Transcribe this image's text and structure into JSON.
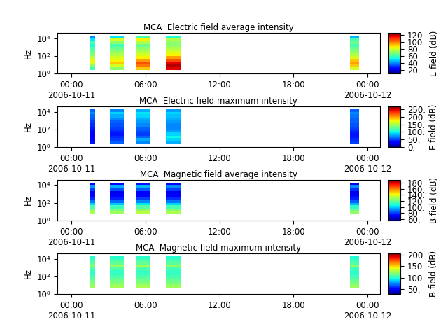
{
  "chart_data": [
    {
      "type": "heatmap",
      "title": "MCA  Electric field average intensity",
      "y_label": "Hz",
      "log": "y",
      "xlim": [
        "2006-10-10 22:50",
        "2006-10-12 01:00"
      ],
      "xticks": [
        {
          "value": "2006-10-11 00:00",
          "label": "00:00\n2006-10-11"
        },
        {
          "value": "2006-10-11 06:00",
          "label": "06:00"
        },
        {
          "value": "2006-10-11 12:00",
          "label": "12:00"
        },
        {
          "value": "2006-10-11 18:00",
          "label": "18:00"
        },
        {
          "value": "2006-10-12 00:00",
          "label": "00:00\n2006-10-12"
        }
      ],
      "ylim": [
        1,
        40000
      ],
      "yticks": [
        {
          "value": 1,
          "label": "10⁰"
        },
        {
          "value": 100,
          "label": "10²"
        },
        {
          "value": 10000,
          "label": "10⁴"
        }
      ],
      "segments": [
        {
          "start": "2006-10-11 01:30",
          "end": "2006-10-11 01:55"
        },
        {
          "start": "2006-10-11 03:05",
          "end": "2006-10-11 04:15"
        },
        {
          "start": "2006-10-11 05:15",
          "end": "2006-10-11 06:20"
        },
        {
          "start": "2006-10-11 07:40",
          "end": "2006-10-11 08:50"
        },
        {
          "start": "2006-10-11 22:35",
          "end": "2006-10-11 23:20"
        }
      ],
      "frequency_edges": [
        2.5,
        5,
        10,
        20,
        50,
        100,
        200,
        500,
        1000,
        2000,
        5000,
        10000,
        18000
      ],
      "cells": [
        [
          60,
          70,
          80,
          85,
          75,
          70,
          65,
          60,
          55,
          60,
          50,
          40
        ],
        [
          70,
          80,
          90,
          85,
          80,
          75,
          70,
          65,
          60,
          70,
          80,
          50
        ],
        [
          90,
          100,
          105,
          95,
          85,
          80,
          75,
          70,
          65,
          75,
          85,
          60
        ],
        [
          115,
          120,
          115,
          105,
          95,
          85,
          80,
          75,
          70,
          70,
          75,
          55
        ],
        [
          80,
          90,
          95,
          90,
          80,
          75,
          70,
          65,
          60,
          65,
          60,
          45
        ]
      ],
      "colorbar": {
        "label": "E field (dB)",
        "range": [
          10,
          125
        ],
        "ticks": [
          {
            "value": 20,
            "label": "20."
          },
          {
            "value": 40,
            "label": "40."
          },
          {
            "value": 60,
            "label": "60."
          },
          {
            "value": 80,
            "label": "80."
          },
          {
            "value": 100,
            "label": "100."
          },
          {
            "value": 120,
            "label": "120."
          }
        ]
      }
    },
    {
      "type": "heatmap",
      "title": "MCA  Electric field maximum intensity",
      "y_label": "Hz",
      "log": "y",
      "xlim": [
        "2006-10-10 22:50",
        "2006-10-12 01:00"
      ],
      "xticks": [
        {
          "value": "2006-10-11 00:00",
          "label": "00:00\n2006-10-11"
        },
        {
          "value": "2006-10-11 06:00",
          "label": "06:00"
        },
        {
          "value": "2006-10-11 12:00",
          "label": "12:00"
        },
        {
          "value": "2006-10-11 18:00",
          "label": "18:00"
        },
        {
          "value": "2006-10-12 00:00",
          "label": "00:00\n2006-10-12"
        }
      ],
      "ylim": [
        1,
        40000
      ],
      "yticks": [
        {
          "value": 1,
          "label": "10⁰"
        },
        {
          "value": 100,
          "label": "10²"
        },
        {
          "value": 10000,
          "label": "10⁴"
        }
      ],
      "segments": [
        {
          "start": "2006-10-11 01:30",
          "end": "2006-10-11 01:55"
        },
        {
          "start": "2006-10-11 03:05",
          "end": "2006-10-11 04:15"
        },
        {
          "start": "2006-10-11 05:15",
          "end": "2006-10-11 06:20"
        },
        {
          "start": "2006-10-11 07:40",
          "end": "2006-10-11 08:50"
        },
        {
          "start": "2006-10-11 22:35",
          "end": "2006-10-11 23:20"
        }
      ],
      "frequency_edges": [
        2.5,
        5,
        10,
        20,
        50,
        100,
        200,
        500,
        1000,
        2000,
        5000,
        10000,
        18000
      ],
      "cells": [
        [
          40,
          35,
          30,
          30,
          35,
          40,
          45,
          50,
          55,
          60,
          70,
          60
        ],
        [
          60,
          50,
          45,
          40,
          45,
          50,
          55,
          60,
          70,
          80,
          90,
          70
        ],
        [
          70,
          80,
          60,
          50,
          55,
          60,
          70,
          75,
          80,
          90,
          95,
          80
        ],
        [
          80,
          90,
          100,
          90,
          75,
          70,
          70,
          75,
          80,
          85,
          90,
          75
        ],
        [
          50,
          45,
          40,
          40,
          45,
          50,
          55,
          60,
          60,
          65,
          70,
          60
        ]
      ],
      "colorbar": {
        "label": "E field (dB)",
        "range": [
          0,
          270
        ],
        "ticks": [
          {
            "value": 0,
            "label": "0."
          },
          {
            "value": 50,
            "label": "50."
          },
          {
            "value": 100,
            "label": "100."
          },
          {
            "value": 150,
            "label": "150."
          },
          {
            "value": 200,
            "label": "200."
          },
          {
            "value": 250,
            "label": "250."
          }
        ]
      }
    },
    {
      "type": "heatmap",
      "title": "MCA  Magnetic field average intensity",
      "y_label": "Hz",
      "log": "y",
      "xlim": [
        "2006-10-10 22:50",
        "2006-10-12 01:00"
      ],
      "xticks": [
        {
          "value": "2006-10-11 00:00",
          "label": "00:00\n2006-10-11"
        },
        {
          "value": "2006-10-11 06:00",
          "label": "06:00"
        },
        {
          "value": "2006-10-11 12:00",
          "label": "12:00"
        },
        {
          "value": "2006-10-11 18:00",
          "label": "18:00"
        },
        {
          "value": "2006-10-12 00:00",
          "label": "00:00\n2006-10-12"
        }
      ],
      "ylim": [
        1,
        40000
      ],
      "yticks": [
        {
          "value": 1,
          "label": "10⁰"
        },
        {
          "value": 100,
          "label": "10²"
        },
        {
          "value": 10000,
          "label": "10⁴"
        }
      ],
      "segments": [
        {
          "start": "2006-10-11 01:30",
          "end": "2006-10-11 01:55"
        },
        {
          "start": "2006-10-11 03:05",
          "end": "2006-10-11 04:15"
        },
        {
          "start": "2006-10-11 05:15",
          "end": "2006-10-11 06:20"
        },
        {
          "start": "2006-10-11 07:40",
          "end": "2006-10-11 08:50"
        },
        {
          "start": "2006-10-11 22:35",
          "end": "2006-10-11 23:20"
        }
      ],
      "frequency_edges": [
        2.5,
        5,
        10,
        20,
        50,
        100,
        200,
        500,
        1000,
        2000,
        5000,
        10000,
        18000
      ],
      "cells": [
        [
          null,
          130,
          125,
          115,
          100,
          88,
          78,
          72,
          70,
          80,
          92,
          72
        ],
        [
          null,
          128,
          122,
          112,
          98,
          86,
          76,
          70,
          68,
          82,
          95,
          70
        ],
        [
          null,
          132,
          126,
          116,
          102,
          90,
          80,
          72,
          70,
          84,
          96,
          74
        ],
        [
          null,
          130,
          124,
          114,
          100,
          88,
          78,
          71,
          69,
          80,
          90,
          70
        ],
        [
          null,
          126,
          120,
          110,
          96,
          85,
          76,
          70,
          68,
          78,
          90,
          68
        ]
      ],
      "colorbar": {
        "label": "B field (dB)",
        "range": [
          55,
          190
        ],
        "ticks": [
          {
            "value": 60,
            "label": "60."
          },
          {
            "value": 80,
            "label": "80."
          },
          {
            "value": 100,
            "label": "100."
          },
          {
            "value": 120,
            "label": "120."
          },
          {
            "value": 140,
            "label": "140."
          },
          {
            "value": 160,
            "label": "160."
          },
          {
            "value": 180,
            "label": "180."
          }
        ]
      }
    },
    {
      "type": "heatmap",
      "title": "MCA  Magnetic field maximum intensity",
      "y_label": "Hz",
      "log": "y",
      "xlim": [
        "2006-10-10 22:50",
        "2006-10-12 01:00"
      ],
      "xticks": [
        {
          "value": "2006-10-11 00:00",
          "label": "00:00\n2006-10-11"
        },
        {
          "value": "2006-10-11 06:00",
          "label": "06:00"
        },
        {
          "value": "2006-10-11 12:00",
          "label": "12:00"
        },
        {
          "value": "2006-10-11 18:00",
          "label": "18:00"
        },
        {
          "value": "2006-10-12 00:00",
          "label": "00:00\n2006-10-12"
        }
      ],
      "ylim": [
        1,
        40000
      ],
      "yticks": [
        {
          "value": 1,
          "label": "10⁰"
        },
        {
          "value": 100,
          "label": "10²"
        },
        {
          "value": 10000,
          "label": "10⁴"
        }
      ],
      "segments": [
        {
          "start": "2006-10-11 01:30",
          "end": "2006-10-11 01:55"
        },
        {
          "start": "2006-10-11 03:05",
          "end": "2006-10-11 04:15"
        },
        {
          "start": "2006-10-11 05:15",
          "end": "2006-10-11 06:20"
        },
        {
          "start": "2006-10-11 07:40",
          "end": "2006-10-11 08:50"
        },
        {
          "start": "2006-10-11 22:35",
          "end": "2006-10-11 23:20"
        }
      ],
      "frequency_edges": [
        2.5,
        5,
        10,
        20,
        50,
        100,
        200,
        500,
        1000,
        2000,
        5000,
        10000,
        18000
      ],
      "cells": [
        [
          null,
          125,
          120,
          115,
          108,
          104,
          102,
          106,
          122,
          110,
          104,
          100
        ],
        [
          null,
          126,
          121,
          116,
          108,
          104,
          102,
          108,
          124,
          112,
          105,
          100
        ],
        [
          null,
          127,
          122,
          116,
          109,
          105,
          103,
          108,
          124,
          112,
          106,
          101
        ],
        [
          null,
          125,
          120,
          114,
          107,
          104,
          102,
          106,
          122,
          110,
          104,
          100
        ],
        [
          null,
          124,
          119,
          113,
          106,
          103,
          101,
          105,
          120,
          108,
          103,
          99
        ]
      ],
      "colorbar": {
        "label": "B field (dB)",
        "range": [
          30,
          205
        ],
        "ticks": [
          {
            "value": 50,
            "label": "50."
          },
          {
            "value": 100,
            "label": "100."
          },
          {
            "value": 150,
            "label": "150."
          },
          {
            "value": 200,
            "label": "200."
          }
        ]
      }
    }
  ]
}
